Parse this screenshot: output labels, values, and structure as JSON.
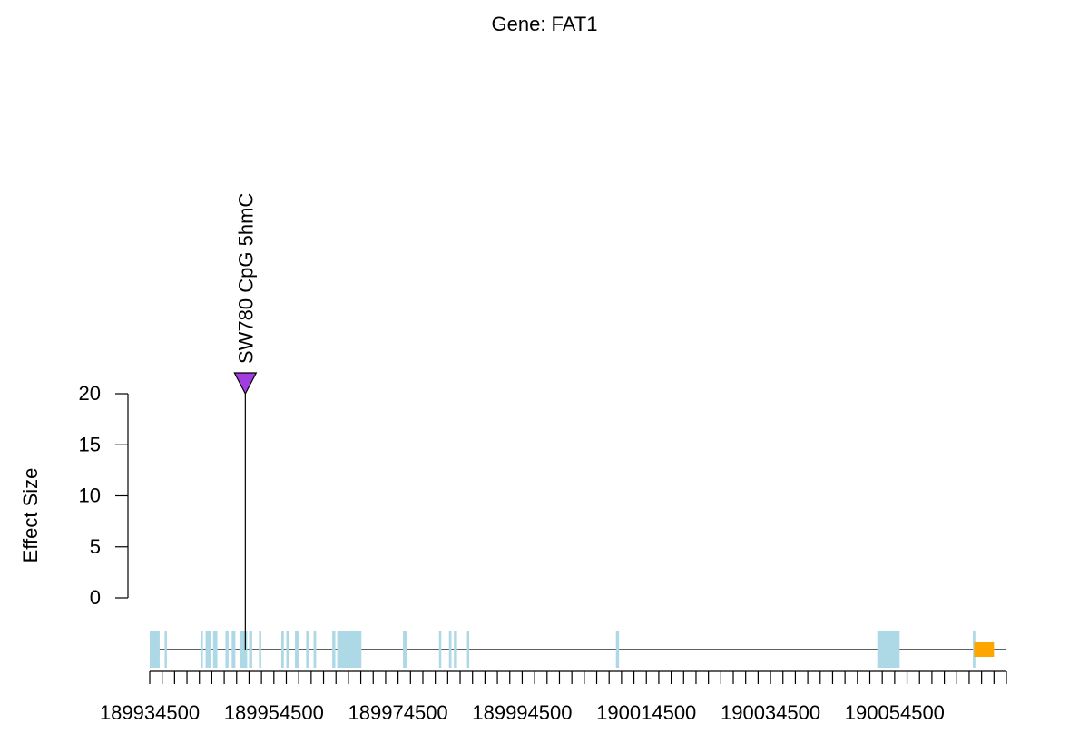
{
  "chart_data": {
    "type": "lollipop",
    "title": "Gene: FAT1",
    "ylabel": "Effect Size",
    "xlabel": "",
    "ylim": [
      0,
      20
    ],
    "y_ticks": [
      0,
      5,
      10,
      15,
      20
    ],
    "xlim": [
      189934500,
      190072500
    ],
    "x_tick_labels": [
      189934500,
      189954500,
      189974500,
      189994500,
      190014500,
      190034500,
      190054500
    ],
    "x_minor_tick_step": 2000,
    "points": [
      {
        "label": "SW780 CpG 5hmC",
        "x": 189949900,
        "y": 20,
        "color": "#a23ee0",
        "marker": "triangle-down"
      }
    ],
    "gene_track": {
      "exon_color": "#add8e6",
      "line_color": "#000000",
      "exons": [
        [
          189934500,
          189936100
        ],
        [
          189936900,
          189937200
        ],
        [
          189942700,
          189943000
        ],
        [
          189943500,
          189944300
        ],
        [
          189944700,
          189945400
        ],
        [
          189946700,
          189947200
        ],
        [
          189947700,
          189948300
        ],
        [
          189949100,
          189950200
        ],
        [
          189950500,
          189951000
        ],
        [
          189952100,
          189952400
        ],
        [
          189955700,
          189956100
        ],
        [
          189956500,
          189956800
        ],
        [
          189957900,
          189958500
        ],
        [
          189959700,
          189960200
        ],
        [
          189960900,
          189961300
        ],
        [
          189963900,
          189964400
        ],
        [
          189964700,
          189968600
        ],
        [
          189975300,
          189975900
        ],
        [
          189981100,
          189981400
        ],
        [
          189982700,
          189983100
        ],
        [
          189983500,
          189984000
        ],
        [
          189985600,
          189985900
        ],
        [
          190009600,
          190010100
        ],
        [
          190051700,
          190055300
        ],
        [
          190067100,
          190067500
        ]
      ],
      "marker": {
        "x": [
          190067300,
          190070500
        ],
        "color": "#ffa500"
      }
    }
  }
}
